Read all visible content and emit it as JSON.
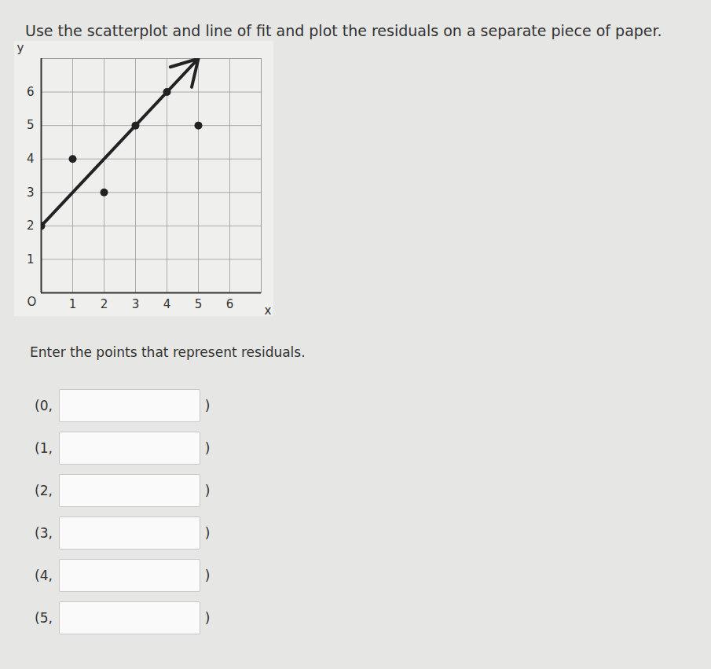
{
  "instruction": "Use the scatterplot and line of fit and plot the residuals on a separate piece of paper.",
  "chart_data": {
    "type": "scatter",
    "x": [
      0,
      1,
      2,
      3,
      4,
      5
    ],
    "values": [
      2,
      4,
      3,
      5,
      6,
      5
    ],
    "line_of_fit": {
      "x": [
        0,
        5
      ],
      "y": [
        2,
        7
      ]
    },
    "xlim": [
      0,
      7
    ],
    "ylim": [
      0,
      7
    ],
    "xticks": [
      1,
      2,
      3,
      4,
      5,
      6
    ],
    "yticks": [
      1,
      2,
      3,
      4,
      5,
      6
    ],
    "x_label": "x",
    "y_label": "y",
    "annotations": [
      {
        "text": "O",
        "x": 0,
        "y": 0
      }
    ],
    "grid": true,
    "color": "#222222",
    "marker": "circle"
  },
  "prompt": "Enter the points that represent residuals.",
  "answers": [
    {
      "open": "(0,",
      "close": ")"
    },
    {
      "open": "(1,",
      "close": ")"
    },
    {
      "open": "(2,",
      "close": ")"
    },
    {
      "open": "(3,",
      "close": ")"
    },
    {
      "open": "(4,",
      "close": ")"
    },
    {
      "open": "(5,",
      "close": ")"
    }
  ]
}
